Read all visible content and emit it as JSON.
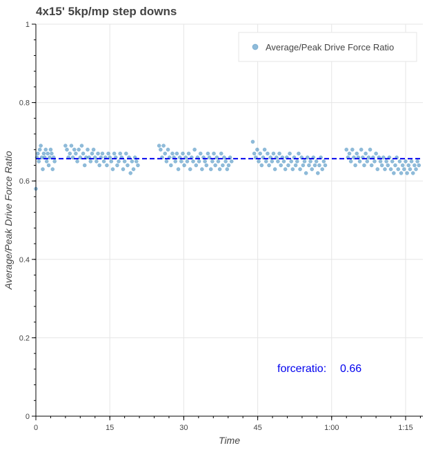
{
  "chart_data": {
    "type": "scatter",
    "title": "4x15' 5kp/mp step downs",
    "xlabel": "Time",
    "ylabel": "Average/Peak Drive Force Ratio",
    "xlim": [
      0,
      78.5
    ],
    "ylim": [
      0,
      1
    ],
    "x_units": "minutes",
    "xticks": [
      {
        "value": 0,
        "label": "0"
      },
      {
        "value": 15,
        "label": "15"
      },
      {
        "value": 30,
        "label": "30"
      },
      {
        "value": 45,
        "label": "45"
      },
      {
        "value": 60,
        "label": "1:00"
      },
      {
        "value": 75,
        "label": "1:15"
      }
    ],
    "yticks": [
      {
        "value": 0,
        "label": "0"
      },
      {
        "value": 0.2,
        "label": "0.2"
      },
      {
        "value": 0.4,
        "label": "0.4"
      },
      {
        "value": 0.6,
        "label": "0.6"
      },
      {
        "value": 0.8,
        "label": "0.8"
      },
      {
        "value": 1,
        "label": "1"
      }
    ],
    "grid": true,
    "legend_position": "top-right",
    "series": [
      {
        "name": "Average/Peak Drive Force Ratio",
        "color": "#1f77b4",
        "points": [
          [
            0.0,
            0.58
          ],
          [
            0.2,
            0.66
          ],
          [
            0.4,
            0.67
          ],
          [
            0.6,
            0.65
          ],
          [
            0.8,
            0.68
          ],
          [
            1.0,
            0.69
          ],
          [
            1.2,
            0.66
          ],
          [
            1.4,
            0.63
          ],
          [
            1.6,
            0.67
          ],
          [
            1.8,
            0.66
          ],
          [
            2.0,
            0.68
          ],
          [
            2.2,
            0.65
          ],
          [
            2.4,
            0.67
          ],
          [
            2.6,
            0.64
          ],
          [
            2.8,
            0.66
          ],
          [
            3.0,
            0.68
          ],
          [
            3.2,
            0.67
          ],
          [
            3.4,
            0.63
          ],
          [
            3.6,
            0.66
          ],
          [
            3.8,
            0.65
          ],
          [
            6.0,
            0.69
          ],
          [
            6.3,
            0.68
          ],
          [
            6.6,
            0.66
          ],
          [
            6.9,
            0.67
          ],
          [
            7.2,
            0.69
          ],
          [
            7.5,
            0.66
          ],
          [
            7.8,
            0.68
          ],
          [
            8.1,
            0.67
          ],
          [
            8.4,
            0.65
          ],
          [
            8.7,
            0.68
          ],
          [
            9.0,
            0.66
          ],
          [
            9.3,
            0.69
          ],
          [
            9.6,
            0.67
          ],
          [
            9.9,
            0.64
          ],
          [
            10.2,
            0.66
          ],
          [
            10.5,
            0.68
          ],
          [
            10.8,
            0.66
          ],
          [
            11.1,
            0.65
          ],
          [
            11.4,
            0.67
          ],
          [
            11.7,
            0.68
          ],
          [
            12.0,
            0.66
          ],
          [
            12.3,
            0.65
          ],
          [
            12.6,
            0.67
          ],
          [
            12.9,
            0.64
          ],
          [
            13.2,
            0.66
          ],
          [
            13.5,
            0.67
          ],
          [
            13.8,
            0.65
          ],
          [
            14.1,
            0.66
          ],
          [
            14.4,
            0.64
          ],
          [
            14.7,
            0.67
          ],
          [
            15.0,
            0.66
          ],
          [
            15.3,
            0.65
          ],
          [
            15.6,
            0.63
          ],
          [
            15.9,
            0.67
          ],
          [
            16.2,
            0.66
          ],
          [
            16.5,
            0.64
          ],
          [
            16.8,
            0.65
          ],
          [
            17.1,
            0.67
          ],
          [
            17.4,
            0.66
          ],
          [
            17.7,
            0.63
          ],
          [
            18.0,
            0.65
          ],
          [
            18.3,
            0.67
          ],
          [
            18.6,
            0.64
          ],
          [
            18.9,
            0.66
          ],
          [
            19.2,
            0.62
          ],
          [
            19.5,
            0.65
          ],
          [
            19.8,
            0.63
          ],
          [
            20.1,
            0.66
          ],
          [
            20.4,
            0.65
          ],
          [
            20.7,
            0.64
          ],
          [
            25.0,
            0.69
          ],
          [
            25.3,
            0.68
          ],
          [
            25.6,
            0.66
          ],
          [
            25.9,
            0.69
          ],
          [
            26.2,
            0.67
          ],
          [
            26.5,
            0.65
          ],
          [
            26.8,
            0.68
          ],
          [
            27.1,
            0.66
          ],
          [
            27.4,
            0.64
          ],
          [
            27.7,
            0.67
          ],
          [
            28.0,
            0.66
          ],
          [
            28.3,
            0.65
          ],
          [
            28.6,
            0.67
          ],
          [
            28.9,
            0.63
          ],
          [
            29.2,
            0.66
          ],
          [
            29.5,
            0.65
          ],
          [
            29.8,
            0.67
          ],
          [
            30.1,
            0.64
          ],
          [
            30.4,
            0.66
          ],
          [
            30.7,
            0.65
          ],
          [
            31.0,
            0.67
          ],
          [
            31.3,
            0.63
          ],
          [
            31.6,
            0.66
          ],
          [
            31.9,
            0.65
          ],
          [
            32.2,
            0.68
          ],
          [
            32.5,
            0.64
          ],
          [
            32.8,
            0.66
          ],
          [
            33.1,
            0.65
          ],
          [
            33.4,
            0.67
          ],
          [
            33.7,
            0.63
          ],
          [
            34.0,
            0.66
          ],
          [
            34.3,
            0.65
          ],
          [
            34.6,
            0.64
          ],
          [
            34.9,
            0.67
          ],
          [
            35.2,
            0.66
          ],
          [
            35.5,
            0.63
          ],
          [
            35.8,
            0.65
          ],
          [
            36.1,
            0.67
          ],
          [
            36.4,
            0.64
          ],
          [
            36.7,
            0.66
          ],
          [
            37.0,
            0.65
          ],
          [
            37.3,
            0.63
          ],
          [
            37.6,
            0.67
          ],
          [
            37.9,
            0.64
          ],
          [
            38.2,
            0.66
          ],
          [
            38.5,
            0.65
          ],
          [
            38.8,
            0.63
          ],
          [
            39.1,
            0.64
          ],
          [
            39.4,
            0.66
          ],
          [
            39.7,
            0.65
          ],
          [
            44.0,
            0.7
          ],
          [
            44.3,
            0.67
          ],
          [
            44.6,
            0.66
          ],
          [
            44.9,
            0.68
          ],
          [
            45.2,
            0.65
          ],
          [
            45.5,
            0.67
          ],
          [
            45.8,
            0.64
          ],
          [
            46.1,
            0.66
          ],
          [
            46.4,
            0.68
          ],
          [
            46.7,
            0.65
          ],
          [
            47.0,
            0.67
          ],
          [
            47.3,
            0.64
          ],
          [
            47.6,
            0.66
          ],
          [
            47.9,
            0.65
          ],
          [
            48.2,
            0.67
          ],
          [
            48.5,
            0.63
          ],
          [
            48.8,
            0.66
          ],
          [
            49.1,
            0.65
          ],
          [
            49.4,
            0.67
          ],
          [
            49.7,
            0.64
          ],
          [
            50.0,
            0.66
          ],
          [
            50.3,
            0.65
          ],
          [
            50.6,
            0.63
          ],
          [
            50.9,
            0.66
          ],
          [
            51.2,
            0.64
          ],
          [
            51.5,
            0.67
          ],
          [
            51.8,
            0.65
          ],
          [
            52.1,
            0.63
          ],
          [
            52.4,
            0.66
          ],
          [
            52.7,
            0.64
          ],
          [
            53.0,
            0.65
          ],
          [
            53.3,
            0.67
          ],
          [
            53.6,
            0.63
          ],
          [
            53.9,
            0.66
          ],
          [
            54.2,
            0.64
          ],
          [
            54.5,
            0.65
          ],
          [
            54.8,
            0.62
          ],
          [
            55.1,
            0.66
          ],
          [
            55.4,
            0.64
          ],
          [
            55.7,
            0.65
          ],
          [
            56.0,
            0.63
          ],
          [
            56.3,
            0.66
          ],
          [
            56.6,
            0.64
          ],
          [
            56.9,
            0.65
          ],
          [
            57.2,
            0.62
          ],
          [
            57.5,
            0.64
          ],
          [
            57.8,
            0.66
          ],
          [
            58.1,
            0.63
          ],
          [
            58.4,
            0.65
          ],
          [
            58.7,
            0.64
          ],
          [
            63.0,
            0.68
          ],
          [
            63.3,
            0.66
          ],
          [
            63.6,
            0.67
          ],
          [
            63.9,
            0.65
          ],
          [
            64.2,
            0.68
          ],
          [
            64.5,
            0.66
          ],
          [
            64.8,
            0.64
          ],
          [
            65.1,
            0.67
          ],
          [
            65.4,
            0.66
          ],
          [
            65.7,
            0.65
          ],
          [
            66.0,
            0.68
          ],
          [
            66.3,
            0.66
          ],
          [
            66.6,
            0.64
          ],
          [
            66.9,
            0.67
          ],
          [
            67.2,
            0.65
          ],
          [
            67.5,
            0.66
          ],
          [
            67.8,
            0.68
          ],
          [
            68.1,
            0.64
          ],
          [
            68.4,
            0.66
          ],
          [
            68.7,
            0.65
          ],
          [
            69.0,
            0.67
          ],
          [
            69.3,
            0.63
          ],
          [
            69.6,
            0.66
          ],
          [
            69.9,
            0.65
          ],
          [
            70.2,
            0.64
          ],
          [
            70.5,
            0.66
          ],
          [
            70.8,
            0.63
          ],
          [
            71.1,
            0.65
          ],
          [
            71.4,
            0.64
          ],
          [
            71.7,
            0.66
          ],
          [
            72.0,
            0.63
          ],
          [
            72.3,
            0.65
          ],
          [
            72.6,
            0.62
          ],
          [
            72.9,
            0.64
          ],
          [
            73.2,
            0.66
          ],
          [
            73.5,
            0.63
          ],
          [
            73.8,
            0.65
          ],
          [
            74.1,
            0.62
          ],
          [
            74.4,
            0.64
          ],
          [
            74.7,
            0.63
          ],
          [
            75.0,
            0.65
          ],
          [
            75.3,
            0.62
          ],
          [
            75.6,
            0.64
          ],
          [
            75.9,
            0.63
          ],
          [
            76.2,
            0.65
          ],
          [
            76.5,
            0.62
          ],
          [
            76.8,
            0.64
          ],
          [
            77.1,
            0.63
          ],
          [
            77.4,
            0.65
          ],
          [
            77.7,
            0.64
          ]
        ]
      }
    ],
    "reference_line": {
      "value": 0.657,
      "style": "dashed",
      "color": "#0000ee"
    },
    "annotation": {
      "label": "forceratio:",
      "value": "0.66",
      "color": "#0000ee"
    }
  }
}
